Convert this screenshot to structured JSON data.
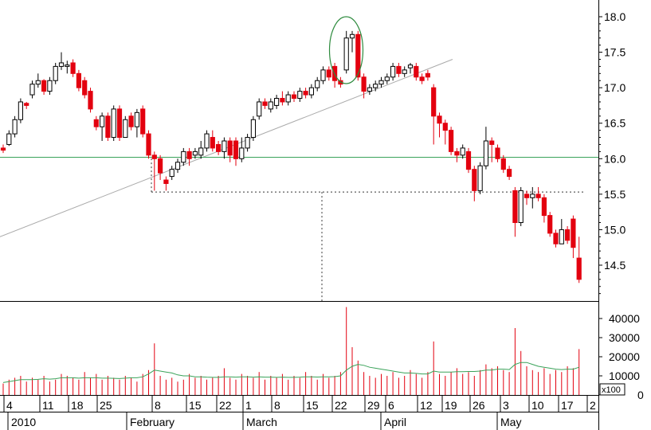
{
  "chart_data": [
    {
      "type": "candlestick",
      "price_axis": {
        "ticks": [
          14.5,
          15.0,
          15.5,
          16.0,
          16.5,
          17.0,
          17.5,
          18.0
        ],
        "ylim": [
          13.9,
          18.2
        ]
      },
      "x_day_labels": [
        "4",
        "11",
        "18",
        "25",
        "8",
        "15",
        "22",
        "1",
        "8",
        "15",
        "22",
        "29",
        "6",
        "12",
        "19",
        "26",
        "3",
        "10",
        "17",
        "2"
      ],
      "x_month_labels": [
        "2010",
        "February",
        "March",
        "April",
        "May"
      ],
      "horizontal_level": 16.02,
      "support_level": 15.53,
      "trendline": {
        "from": 14.9,
        "to": 17.4
      },
      "highlight": {
        "label": "ellipse",
        "around": [
          17.15,
          17.8
        ]
      },
      "candles": [
        [
          16.15,
          16.12,
          16.2,
          16.08
        ],
        [
          16.2,
          16.35,
          16.4,
          16.18
        ],
        [
          16.35,
          16.55,
          16.6,
          16.3
        ],
        [
          16.55,
          16.8,
          16.85,
          16.5
        ],
        [
          16.78,
          16.75,
          16.8,
          16.7
        ],
        [
          16.9,
          17.05,
          17.1,
          16.85
        ],
        [
          17.05,
          17.1,
          17.2,
          17.0
        ],
        [
          17.1,
          16.95,
          17.12,
          16.9
        ],
        [
          16.95,
          17.1,
          17.15,
          16.9
        ],
        [
          17.1,
          17.3,
          17.35,
          17.05
        ],
        [
          17.3,
          17.35,
          17.5,
          17.25
        ],
        [
          17.3,
          17.32,
          17.38,
          17.2
        ],
        [
          17.35,
          17.2,
          17.4,
          17.15
        ],
        [
          17.2,
          17.0,
          17.25,
          16.95
        ],
        [
          17.1,
          16.9,
          17.15,
          16.85
        ],
        [
          16.95,
          16.7,
          17.0,
          16.65
        ],
        [
          16.55,
          16.45,
          16.6,
          16.4
        ],
        [
          16.45,
          16.6,
          16.65,
          16.25
        ],
        [
          16.6,
          16.3,
          16.65,
          16.25
        ],
        [
          16.3,
          16.7,
          16.75,
          16.25
        ],
        [
          16.7,
          16.3,
          16.75,
          16.25
        ],
        [
          16.3,
          16.55,
          16.6,
          16.3
        ],
        [
          16.6,
          16.45,
          16.65,
          16.4
        ],
        [
          16.45,
          16.65,
          16.7,
          16.3
        ],
        [
          16.7,
          16.35,
          16.75,
          16.3
        ],
        [
          16.35,
          16.05,
          16.4,
          16.0
        ],
        [
          16.05,
          16.0,
          16.1,
          15.55
        ],
        [
          16.0,
          15.8,
          16.05,
          15.7
        ],
        [
          15.7,
          15.65,
          15.75,
          15.55
        ],
        [
          15.75,
          15.85,
          15.9,
          15.7
        ],
        [
          15.85,
          15.95,
          16.0,
          15.8
        ],
        [
          15.95,
          16.1,
          16.15,
          15.9
        ],
        [
          16.1,
          16.0,
          16.15,
          15.9
        ],
        [
          16.05,
          16.1,
          16.15,
          16.0
        ],
        [
          16.05,
          16.15,
          16.25,
          16.0
        ],
        [
          16.15,
          16.35,
          16.4,
          16.1
        ],
        [
          16.3,
          16.15,
          16.4,
          16.1
        ],
        [
          16.2,
          16.1,
          16.25,
          16.05
        ],
        [
          16.1,
          16.25,
          16.3,
          16.0
        ],
        [
          16.25,
          16.05,
          16.3,
          15.95
        ],
        [
          16.25,
          16.0,
          16.3,
          15.9
        ],
        [
          16.0,
          16.15,
          16.3,
          15.95
        ],
        [
          16.15,
          16.3,
          16.35,
          16.1
        ],
        [
          16.3,
          16.55,
          16.6,
          16.25
        ],
        [
          16.6,
          16.8,
          16.85,
          16.55
        ],
        [
          16.8,
          16.75,
          16.85,
          16.7
        ],
        [
          16.7,
          16.8,
          16.85,
          16.65
        ],
        [
          16.75,
          16.85,
          16.9,
          16.7
        ],
        [
          16.85,
          16.8,
          16.95,
          16.75
        ],
        [
          16.8,
          16.9,
          16.95,
          16.75
        ],
        [
          16.9,
          16.85,
          16.95,
          16.8
        ],
        [
          16.85,
          16.95,
          17.0,
          16.8
        ],
        [
          16.95,
          16.9,
          17.0,
          16.85
        ],
        [
          16.9,
          17.0,
          17.05,
          16.85
        ],
        [
          17.0,
          17.1,
          17.15,
          16.95
        ],
        [
          17.1,
          17.25,
          17.3,
          17.05
        ],
        [
          17.25,
          17.15,
          17.3,
          17.1
        ],
        [
          17.3,
          17.1,
          17.35,
          17.0
        ],
        [
          17.1,
          17.05,
          17.15,
          17.0
        ],
        [
          17.25,
          17.7,
          17.8,
          17.2
        ],
        [
          17.7,
          17.75,
          17.8,
          17.5
        ],
        [
          17.75,
          17.15,
          17.8,
          17.1
        ],
        [
          17.15,
          16.95,
          17.2,
          16.85
        ],
        [
          16.95,
          17.0,
          17.05,
          16.9
        ],
        [
          17.0,
          17.05,
          17.1,
          16.95
        ],
        [
          17.05,
          17.1,
          17.15,
          17.0
        ],
        [
          17.1,
          17.15,
          17.2,
          17.05
        ],
        [
          17.15,
          17.3,
          17.35,
          17.1
        ],
        [
          17.3,
          17.2,
          17.35,
          17.15
        ],
        [
          17.2,
          17.25,
          17.3,
          17.15
        ],
        [
          17.28,
          17.32,
          17.35,
          17.2
        ],
        [
          17.3,
          17.15,
          17.35,
          17.1
        ],
        [
          17.15,
          17.1,
          17.2,
          17.05
        ],
        [
          17.2,
          17.15,
          17.25,
          17.1
        ],
        [
          17.0,
          16.6,
          17.05,
          16.2
        ],
        [
          16.6,
          16.5,
          16.65,
          16.3
        ],
        [
          16.5,
          16.4,
          16.55,
          16.2
        ],
        [
          16.4,
          16.1,
          16.45,
          16.05
        ],
        [
          16.1,
          16.05,
          16.15,
          15.95
        ],
        [
          16.05,
          16.15,
          16.2,
          16.0
        ],
        [
          16.1,
          15.85,
          16.15,
          15.8
        ],
        [
          15.85,
          15.55,
          15.9,
          15.4
        ],
        [
          15.55,
          15.9,
          15.95,
          15.5
        ],
        [
          15.9,
          16.25,
          16.45,
          15.85
        ],
        [
          16.25,
          16.2,
          16.3,
          15.95
        ],
        [
          16.15,
          16.0,
          16.2,
          15.95
        ],
        [
          16.0,
          15.85,
          16.05,
          15.8
        ],
        [
          15.85,
          15.75,
          15.9,
          15.7
        ],
        [
          15.55,
          15.1,
          15.6,
          14.9
        ],
        [
          15.1,
          15.55,
          15.6,
          15.05
        ],
        [
          15.5,
          15.45,
          15.55,
          15.35
        ],
        [
          15.45,
          15.5,
          15.6,
          15.3
        ],
        [
          15.5,
          15.45,
          15.6,
          15.4
        ],
        [
          15.45,
          15.2,
          15.5,
          15.1
        ],
        [
          15.2,
          14.95,
          15.25,
          14.9
        ],
        [
          14.95,
          14.8,
          15.0,
          14.75
        ],
        [
          14.8,
          15.0,
          15.15,
          14.8
        ],
        [
          15.0,
          14.85,
          15.05,
          14.8
        ],
        [
          15.15,
          14.75,
          15.2,
          14.6
        ],
        [
          14.6,
          14.3,
          14.9,
          14.25
        ]
      ]
    },
    {
      "type": "bar",
      "volume_axis": {
        "ticks": [
          0,
          10000,
          20000,
          30000,
          40000
        ],
        "multiplier_label": "x100"
      },
      "volume": [
        6,
        8,
        9,
        10,
        7,
        9,
        8,
        10,
        7,
        8,
        11,
        10,
        9,
        8,
        12,
        9,
        11,
        8,
        10,
        9,
        8,
        10,
        9,
        7,
        11,
        13,
        27,
        10,
        8,
        9,
        7,
        8,
        11,
        9,
        10,
        8,
        9,
        10,
        14,
        9,
        8,
        11,
        10,
        9,
        12,
        8,
        10,
        9,
        11,
        8,
        10,
        9,
        12,
        10,
        8,
        11,
        9,
        10,
        12,
        46,
        25,
        18,
        12,
        10,
        9,
        11,
        10,
        12,
        9,
        10,
        13,
        11,
        9,
        12,
        28,
        11,
        10,
        12,
        14,
        11,
        12,
        10,
        13,
        16,
        14,
        15,
        13,
        12,
        35,
        23,
        15,
        13,
        12,
        14,
        11,
        13,
        12,
        15,
        14,
        24
      ],
      "moving_average": [
        6.5,
        7,
        7.5,
        8,
        8,
        8,
        8.2,
        8.5,
        8.3,
        8.5,
        9,
        9,
        9,
        8.8,
        9,
        9,
        9,
        8.8,
        8.8,
        8.7,
        8.6,
        8.8,
        9,
        9,
        9.5,
        11,
        13,
        12.5,
        12,
        11.5,
        10.5,
        10,
        10,
        9.5,
        9.5,
        9.3,
        9.2,
        9.2,
        9.5,
        9.5,
        9.3,
        9.5,
        9.5,
        9.3,
        9.5,
        9.3,
        9.3,
        9.2,
        9.3,
        9.2,
        9.2,
        9.3,
        9.5,
        9.5,
        9.4,
        9.5,
        9.5,
        9.6,
        10,
        13,
        15,
        16,
        15.5,
        14.5,
        14,
        13.5,
        13,
        12.5,
        12,
        11.5,
        11.5,
        11.3,
        11,
        11,
        12.5,
        12,
        12,
        12,
        12.2,
        12.2,
        12.3,
        12.3,
        12.5,
        13,
        13,
        13.5,
        13.5,
        13.3,
        16,
        17,
        17,
        16,
        15,
        14.5,
        14,
        13.5,
        13.3,
        13.5,
        13.5,
        14.5
      ]
    }
  ]
}
